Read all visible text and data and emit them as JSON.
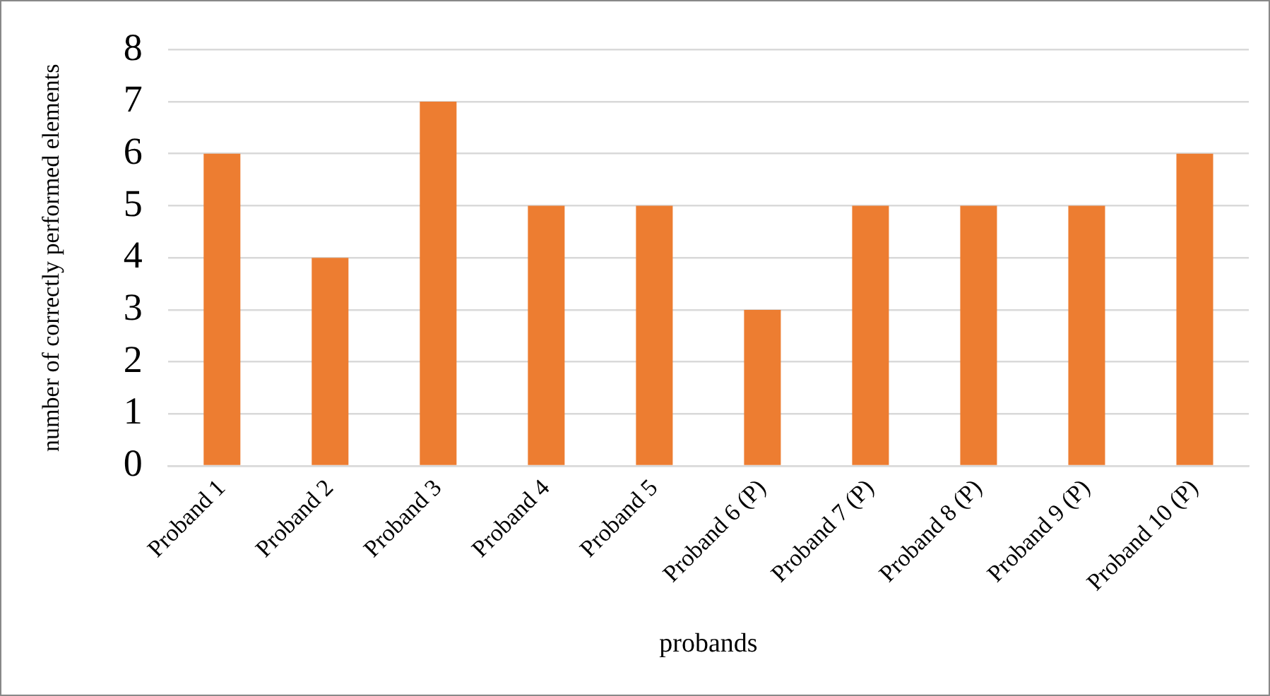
{
  "chart_data": {
    "type": "bar",
    "xlabel": "probands",
    "ylabel": "number of correctly performed elements",
    "categories": [
      "Proband 1",
      "Proband 2",
      "Proband 3",
      "Proband 4",
      "Proband 5",
      "Proband 6 (P)",
      "Proband 7 (P)",
      "Proband 8 (P)",
      "Proband 9 (P)",
      "Proband 10 (P)"
    ],
    "values": [
      6,
      4,
      7,
      5,
      5,
      3,
      5,
      5,
      5,
      6
    ],
    "color": "#ed7d31",
    "ylim": [
      0,
      8
    ],
    "yticks": [
      0,
      1,
      2,
      3,
      4,
      5,
      6,
      7,
      8
    ],
    "grid": "y"
  }
}
